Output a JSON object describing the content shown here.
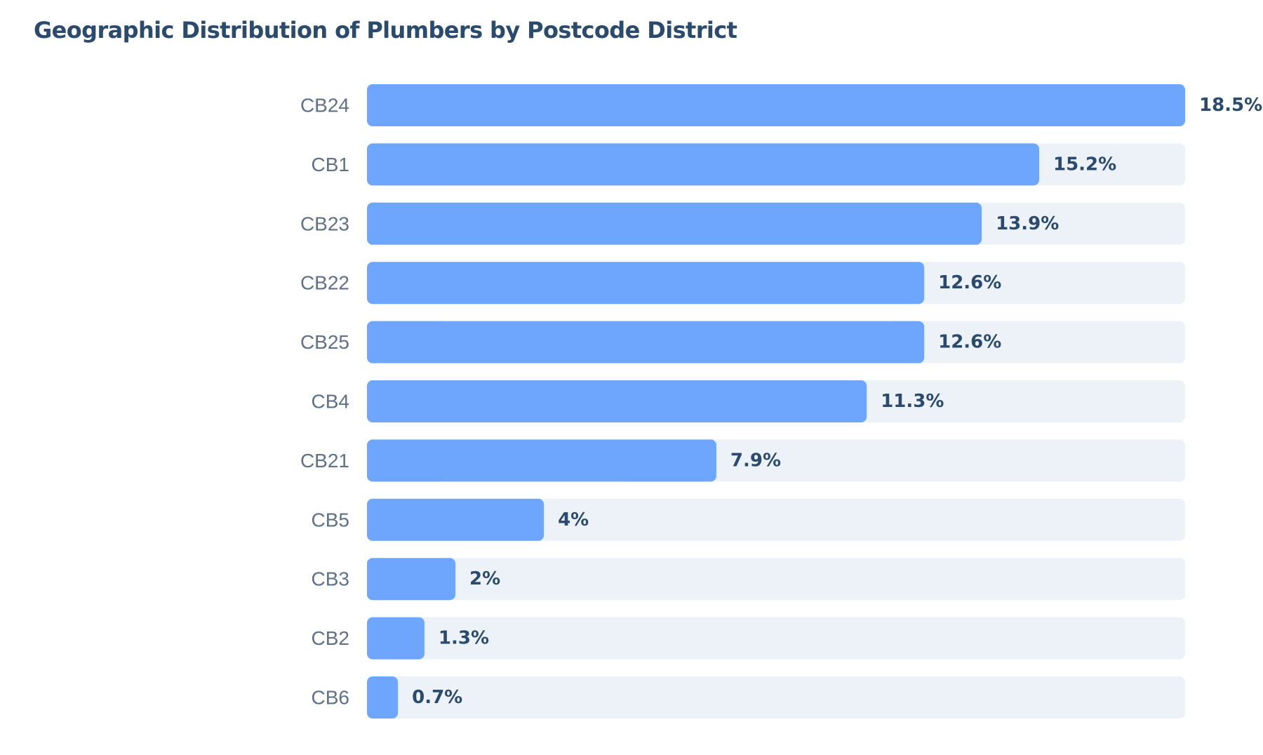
{
  "chart_data": {
    "type": "bar",
    "orientation": "horizontal",
    "title": "Geographic Distribution of Plumbers by Postcode District",
    "xlabel": "",
    "ylabel": "",
    "categories": [
      "CB24",
      "CB1",
      "CB23",
      "CB22",
      "CB25",
      "CB4",
      "CB21",
      "CB5",
      "CB3",
      "CB2",
      "CB6"
    ],
    "values": [
      18.5,
      15.2,
      13.9,
      12.6,
      12.6,
      11.3,
      7.9,
      4,
      2,
      1.3,
      0.7
    ],
    "value_labels": [
      "18.5%",
      "15.2%",
      "13.9%",
      "12.6%",
      "12.6%",
      "11.3%",
      "7.9%",
      "4%",
      "2%",
      "1.3%",
      "0.7%"
    ],
    "xlim": [
      0,
      18.5
    ],
    "grid": false,
    "legend": "none",
    "colors": {
      "bar": "#6ea6fd",
      "track": "#edf2f9",
      "title": "#2a4a6e",
      "category_label": "#5f7186",
      "value_label": "#2a4a6e"
    }
  }
}
